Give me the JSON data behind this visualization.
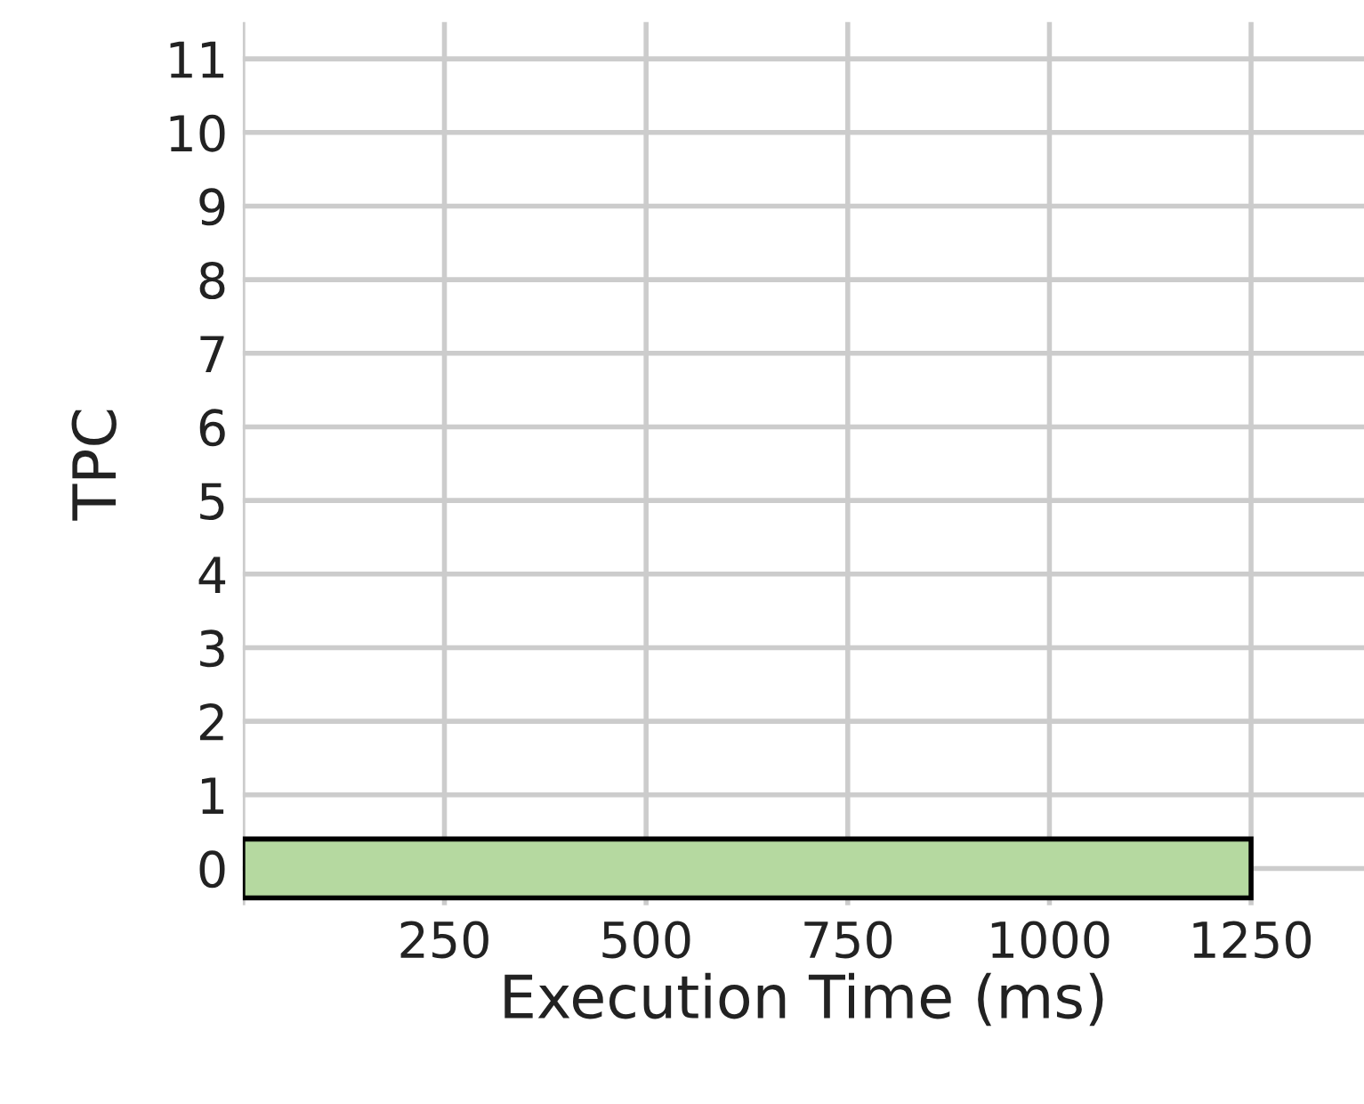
{
  "chart_data": {
    "type": "bar",
    "orientation": "horizontal",
    "xlabel": "Execution Time (ms)",
    "ylabel": "TPC",
    "categories": [
      "11",
      "10",
      "9",
      "8",
      "7",
      "6",
      "5",
      "4",
      "3",
      "2",
      "1",
      "0"
    ],
    "values": [
      null,
      null,
      null,
      null,
      null,
      null,
      null,
      null,
      null,
      null,
      null,
      1250
    ],
    "color": "#b5d9a0",
    "xlim": [
      0,
      1390
    ],
    "xticks": [
      {
        "value": 0,
        "label": null
      },
      250,
      500,
      750,
      1000,
      1250
    ],
    "grid": true
  }
}
